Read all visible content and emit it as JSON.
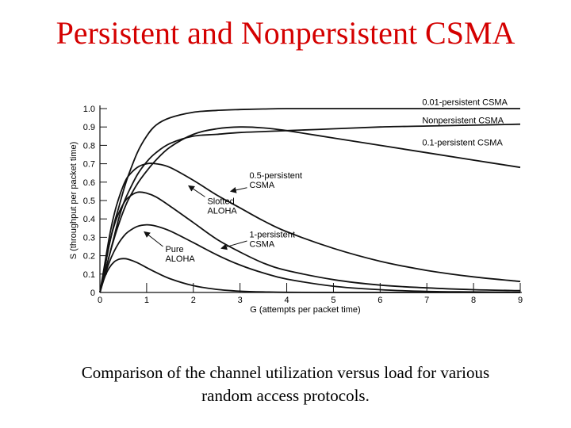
{
  "slide": {
    "title": "Persistent and Nonpersistent CSMA",
    "caption_line1": "Comparison of the channel utilization versus load for various",
    "caption_line2": "random access protocols."
  },
  "chart_data": {
    "type": "line",
    "xlabel": "G (attempts per packet time)",
    "ylabel": "S (throughput per packet time)",
    "xlim": [
      0,
      9
    ],
    "ylim": [
      0,
      1.0
    ],
    "xticks": [
      "0",
      "1",
      "2",
      "3",
      "4",
      "5",
      "6",
      "7",
      "8",
      "9"
    ],
    "yticks": [
      "0",
      "0.1",
      "0.2",
      "0.3",
      "0.4",
      "0.5",
      "0.6",
      "0.7",
      "0.8",
      "0.9",
      "1.0"
    ],
    "grid": false,
    "line_color": "#111111",
    "x": [
      0,
      0.1,
      0.2,
      0.3,
      0.4,
      0.5,
      0.6,
      0.8,
      1.0,
      1.2,
      1.5,
      2.0,
      2.5,
      3.0,
      3.5,
      4.0,
      5.0,
      6.0,
      7.0,
      8.0,
      9.0
    ],
    "series": [
      {
        "key": "pure",
        "values": [
          0,
          0.082,
          0.134,
          0.165,
          0.18,
          0.184,
          0.181,
          0.162,
          0.135,
          0.109,
          0.075,
          0.037,
          0.017,
          0.007,
          0.003,
          0.001,
          0,
          0,
          0,
          0,
          0
        ]
      },
      {
        "key": "slotted",
        "values": [
          0,
          0.09,
          0.164,
          0.222,
          0.268,
          0.303,
          0.329,
          0.359,
          0.368,
          0.361,
          0.335,
          0.271,
          0.205,
          0.149,
          0.106,
          0.073,
          0.034,
          0.015,
          0.006,
          0.003,
          0.001
        ]
      },
      {
        "key": "one",
        "values": [
          0,
          0.13,
          0.26,
          0.36,
          0.43,
          0.48,
          0.515,
          0.545,
          0.54,
          0.52,
          0.47,
          0.38,
          0.29,
          0.22,
          0.16,
          0.12,
          0.07,
          0.04,
          0.025,
          0.015,
          0.01
        ]
      },
      {
        "key": "half",
        "values": [
          0,
          0.15,
          0.3,
          0.42,
          0.51,
          0.58,
          0.63,
          0.68,
          0.7,
          0.7,
          0.68,
          0.61,
          0.53,
          0.46,
          0.39,
          0.33,
          0.24,
          0.17,
          0.12,
          0.085,
          0.06
        ]
      },
      {
        "key": "tenth",
        "values": [
          0,
          0.1,
          0.2,
          0.29,
          0.37,
          0.44,
          0.5,
          0.59,
          0.66,
          0.72,
          0.79,
          0.86,
          0.89,
          0.9,
          0.895,
          0.88,
          0.84,
          0.8,
          0.76,
          0.72,
          0.68
        ]
      },
      {
        "key": "nonpersistent",
        "values": [
          0,
          0.1,
          0.2,
          0.3,
          0.4,
          0.48,
          0.54,
          0.64,
          0.71,
          0.76,
          0.81,
          0.85,
          0.86,
          0.87,
          0.875,
          0.88,
          0.89,
          0.9,
          0.905,
          0.91,
          0.915
        ]
      },
      {
        "key": "hundredth",
        "values": [
          0,
          0.13,
          0.26,
          0.37,
          0.46,
          0.55,
          0.63,
          0.76,
          0.85,
          0.91,
          0.95,
          0.98,
          0.99,
          0.995,
          0.998,
          1.0,
          1.0,
          1.0,
          1.0,
          1.0,
          1.0
        ]
      }
    ],
    "annotations": [
      {
        "id": "hundredth",
        "lines": [
          "0.01-persistent CSMA"
        ],
        "at": [
          6.9,
          1.02
        ],
        "arrow": false
      },
      {
        "id": "nonpersistent",
        "lines": [
          "Nonpersistent CSMA"
        ],
        "at": [
          6.9,
          0.92
        ],
        "arrow": false
      },
      {
        "id": "tenth",
        "lines": [
          "0.1-persistent CSMA"
        ],
        "at": [
          6.9,
          0.8
        ],
        "arrow": false
      },
      {
        "id": "half",
        "lines": [
          "0.5-persistent",
          "CSMA"
        ],
        "at": [
          3.2,
          0.62
        ],
        "arrow": true,
        "arrow_from": [
          3.15,
          0.57
        ],
        "arrow_to": [
          2.8,
          0.55
        ]
      },
      {
        "id": "slotted",
        "lines": [
          "Slotted",
          "ALOHA"
        ],
        "at": [
          2.3,
          0.48
        ],
        "arrow": true,
        "arrow_from": [
          2.25,
          0.52
        ],
        "arrow_to": [
          1.9,
          0.58
        ]
      },
      {
        "id": "one",
        "lines": [
          "1-persistent",
          "CSMA"
        ],
        "at": [
          3.2,
          0.3
        ],
        "arrow": true,
        "arrow_from": [
          3.15,
          0.28
        ],
        "arrow_to": [
          2.6,
          0.24
        ]
      },
      {
        "id": "pure",
        "lines": [
          "Pure",
          "ALOHA"
        ],
        "at": [
          1.4,
          0.22
        ],
        "arrow": true,
        "arrow_from": [
          1.35,
          0.25
        ],
        "arrow_to": [
          0.95,
          0.33
        ]
      }
    ]
  }
}
